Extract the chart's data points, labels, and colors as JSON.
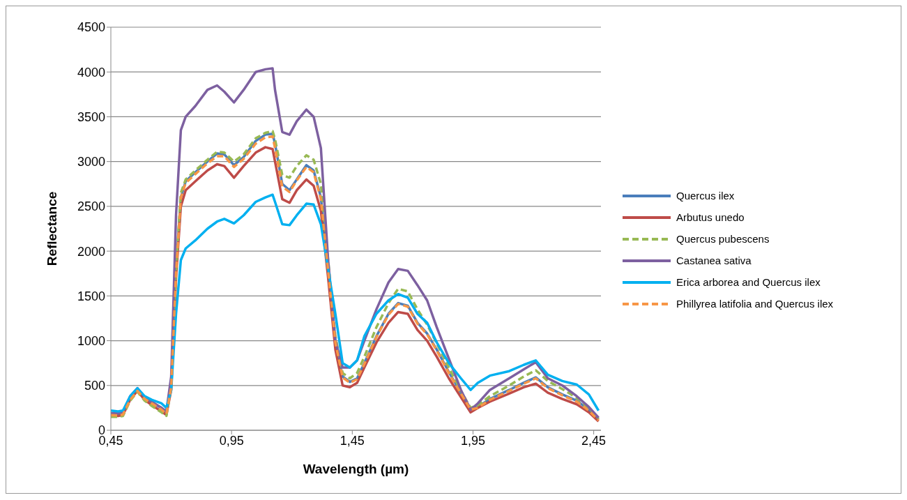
{
  "chart_data": {
    "type": "line",
    "xlabel": "Wavelength (µm)",
    "ylabel": "Reflectance",
    "x": [
      0.45,
      0.48,
      0.5,
      0.53,
      0.56,
      0.59,
      0.62,
      0.66,
      0.68,
      0.7,
      0.72,
      0.74,
      0.76,
      0.8,
      0.85,
      0.89,
      0.92,
      0.96,
      1.0,
      1.05,
      1.09,
      1.12,
      1.13,
      1.16,
      1.19,
      1.22,
      1.26,
      1.29,
      1.32,
      1.35,
      1.38,
      1.41,
      1.44,
      1.47,
      1.5,
      1.55,
      1.6,
      1.64,
      1.68,
      1.72,
      1.76,
      1.8,
      1.85,
      1.9,
      1.94,
      1.97,
      2.02,
      2.1,
      2.16,
      2.21,
      2.26,
      2.32,
      2.38,
      2.43,
      2.47
    ],
    "series": [
      {
        "name": "Quercus ilex",
        "color": "#4a7ebb",
        "line_style": "solid",
        "values": [
          180,
          175,
          185,
          350,
          450,
          360,
          310,
          250,
          190,
          500,
          1800,
          2600,
          2780,
          2880,
          3000,
          3090,
          3080,
          2960,
          3050,
          3230,
          3300,
          3310,
          3200,
          2750,
          2680,
          2800,
          2960,
          2900,
          2600,
          1800,
          1000,
          600,
          540,
          580,
          750,
          1050,
          1300,
          1420,
          1390,
          1200,
          1080,
          900,
          650,
          420,
          240,
          260,
          350,
          450,
          530,
          590,
          480,
          400,
          330,
          230,
          120
        ]
      },
      {
        "name": "Arbutus unedo",
        "color": "#be4b48",
        "line_style": "solid",
        "values": [
          160,
          160,
          170,
          340,
          440,
          340,
          280,
          210,
          170,
          450,
          1700,
          2500,
          2680,
          2780,
          2900,
          2970,
          2950,
          2820,
          2950,
          3100,
          3160,
          3140,
          3000,
          2580,
          2540,
          2680,
          2800,
          2730,
          2450,
          1700,
          900,
          500,
          480,
          530,
          700,
          980,
          1200,
          1320,
          1300,
          1120,
          1000,
          820,
          580,
          370,
          200,
          250,
          320,
          410,
          480,
          520,
          420,
          350,
          290,
          200,
          100
        ]
      },
      {
        "name": "Quercus pubescens",
        "color": "#98b954",
        "line_style": "dashed",
        "values": [
          150,
          150,
          160,
          330,
          430,
          330,
          270,
          200,
          160,
          480,
          1800,
          2650,
          2800,
          2900,
          3020,
          3110,
          3100,
          3000,
          3080,
          3260,
          3320,
          3340,
          3250,
          2850,
          2820,
          2950,
          3070,
          3020,
          2750,
          1900,
          1050,
          640,
          580,
          640,
          820,
          1150,
          1420,
          1580,
          1550,
          1350,
          1180,
          970,
          700,
          440,
          250,
          280,
          380,
          500,
          600,
          670,
          550,
          460,
          360,
          250,
          130
        ]
      },
      {
        "name": "Castanea sativa",
        "color": "#7d60a0",
        "line_style": "solid",
        "values": [
          190,
          190,
          200,
          380,
          470,
          370,
          320,
          250,
          210,
          600,
          2400,
          3350,
          3500,
          3620,
          3800,
          3850,
          3780,
          3660,
          3800,
          4000,
          4030,
          4040,
          3800,
          3330,
          3300,
          3450,
          3580,
          3500,
          3150,
          1900,
          1000,
          700,
          700,
          780,
          1000,
          1350,
          1650,
          1800,
          1780,
          1620,
          1450,
          1150,
          800,
          450,
          230,
          300,
          450,
          580,
          680,
          760,
          580,
          500,
          380,
          260,
          140
        ]
      },
      {
        "name": "Erica arborea and Quercus ilex",
        "color": "#00b0f0",
        "line_style": "solid",
        "values": [
          220,
          210,
          220,
          380,
          470,
          380,
          340,
          300,
          250,
          450,
          1300,
          1900,
          2030,
          2120,
          2250,
          2330,
          2360,
          2310,
          2400,
          2550,
          2600,
          2630,
          2550,
          2300,
          2290,
          2400,
          2530,
          2520,
          2300,
          1800,
          1300,
          750,
          700,
          780,
          1050,
          1300,
          1450,
          1520,
          1480,
          1300,
          1200,
          980,
          750,
          580,
          450,
          530,
          610,
          660,
          730,
          780,
          620,
          550,
          510,
          400,
          220
        ]
      },
      {
        "name": "Phillyrea latifolia and Quercus ilex",
        "color": "#f79646",
        "line_style": "dashed",
        "values": [
          170,
          165,
          175,
          340,
          440,
          350,
          300,
          230,
          180,
          480,
          1750,
          2600,
          2760,
          2860,
          2980,
          3060,
          3060,
          2940,
          3030,
          3200,
          3270,
          3280,
          3150,
          2720,
          2660,
          2790,
          2940,
          2880,
          2580,
          1780,
          980,
          590,
          530,
          570,
          740,
          1040,
          1290,
          1410,
          1380,
          1190,
          1070,
          890,
          640,
          410,
          230,
          250,
          340,
          440,
          520,
          580,
          470,
          390,
          320,
          220,
          110
        ]
      }
    ],
    "xlim": [
      0.45,
      2.48
    ],
    "xticks": [
      {
        "value": 0.45,
        "label": "0,45"
      },
      {
        "value": 0.95,
        "label": "0,95"
      },
      {
        "value": 1.45,
        "label": "1,45"
      },
      {
        "value": 1.95,
        "label": "1,95"
      },
      {
        "value": 2.45,
        "label": "2,45"
      }
    ],
    "ylim": [
      0,
      4500
    ],
    "yticks": [
      0,
      500,
      1000,
      1500,
      2000,
      2500,
      3000,
      3500,
      4000,
      4500
    ],
    "grid": "y",
    "legend": "right"
  }
}
